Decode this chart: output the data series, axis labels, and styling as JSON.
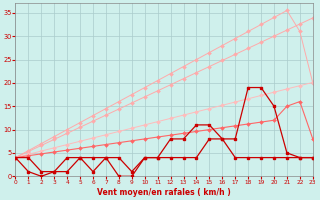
{
  "bg_color": "#cff0ec",
  "grid_color": "#aacccc",
  "x": [
    0,
    1,
    2,
    3,
    4,
    5,
    6,
    7,
    8,
    9,
    10,
    11,
    12,
    13,
    14,
    15,
    16,
    17,
    18,
    19,
    20,
    21,
    22,
    23
  ],
  "line_straight1": [
    4,
    4.7,
    5.4,
    6.1,
    6.8,
    7.5,
    8.2,
    8.9,
    9.6,
    10.3,
    11,
    11.7,
    12.4,
    13.1,
    13.8,
    14.5,
    15.2,
    15.9,
    16.6,
    17.3,
    18,
    18.7,
    19.4,
    20.1
  ],
  "line_straight2": [
    4,
    5.3,
    6.6,
    7.9,
    9.2,
    10.5,
    11.8,
    13.1,
    14.4,
    15.7,
    17,
    18.3,
    19.6,
    20.9,
    22.2,
    23.5,
    24.8,
    26.1,
    27.4,
    28.7,
    30,
    31.3,
    32.6,
    33.9
  ],
  "line_straight3": [
    4,
    5.5,
    7,
    8.5,
    10,
    11.5,
    13,
    14.5,
    16,
    17.5,
    19,
    20.5,
    22,
    23.5,
    25,
    26.5,
    28,
    29.5,
    31,
    32.5,
    34,
    35.5,
    31,
    20
  ],
  "line_straight4": [
    4,
    4.4,
    4.8,
    5.2,
    5.6,
    6.0,
    6.4,
    6.8,
    7.2,
    7.6,
    8.0,
    8.4,
    8.8,
    9.2,
    9.6,
    10,
    10.4,
    10.8,
    11.2,
    11.6,
    12,
    15,
    16,
    8
  ],
  "line_jagged1": [
    4,
    1,
    0,
    1,
    1,
    4,
    1,
    4,
    0,
    0,
    4,
    4,
    4,
    4,
    4,
    8,
    8,
    4,
    4,
    4,
    4,
    4,
    4,
    4
  ],
  "line_jagged2": [
    4,
    4,
    1,
    1,
    4,
    4,
    4,
    4,
    4,
    1,
    4,
    4,
    8,
    8,
    11,
    11,
    8,
    8,
    19,
    19,
    15,
    5,
    4,
    4
  ],
  "col_light1": "#ffaaaa",
  "col_light2": "#ffbbbb",
  "col_med": "#ff6666",
  "col_dark": "#cc0000",
  "xlabel": "Vent moyen/en rafales ( km/h )",
  "ylim": [
    0,
    37
  ],
  "xlim": [
    0,
    23
  ],
  "yticks": [
    0,
    5,
    10,
    15,
    20,
    25,
    30,
    35
  ],
  "xticks": [
    0,
    1,
    2,
    3,
    4,
    5,
    6,
    7,
    8,
    9,
    10,
    11,
    12,
    13,
    14,
    15,
    16,
    17,
    18,
    19,
    20,
    21,
    22,
    23
  ]
}
